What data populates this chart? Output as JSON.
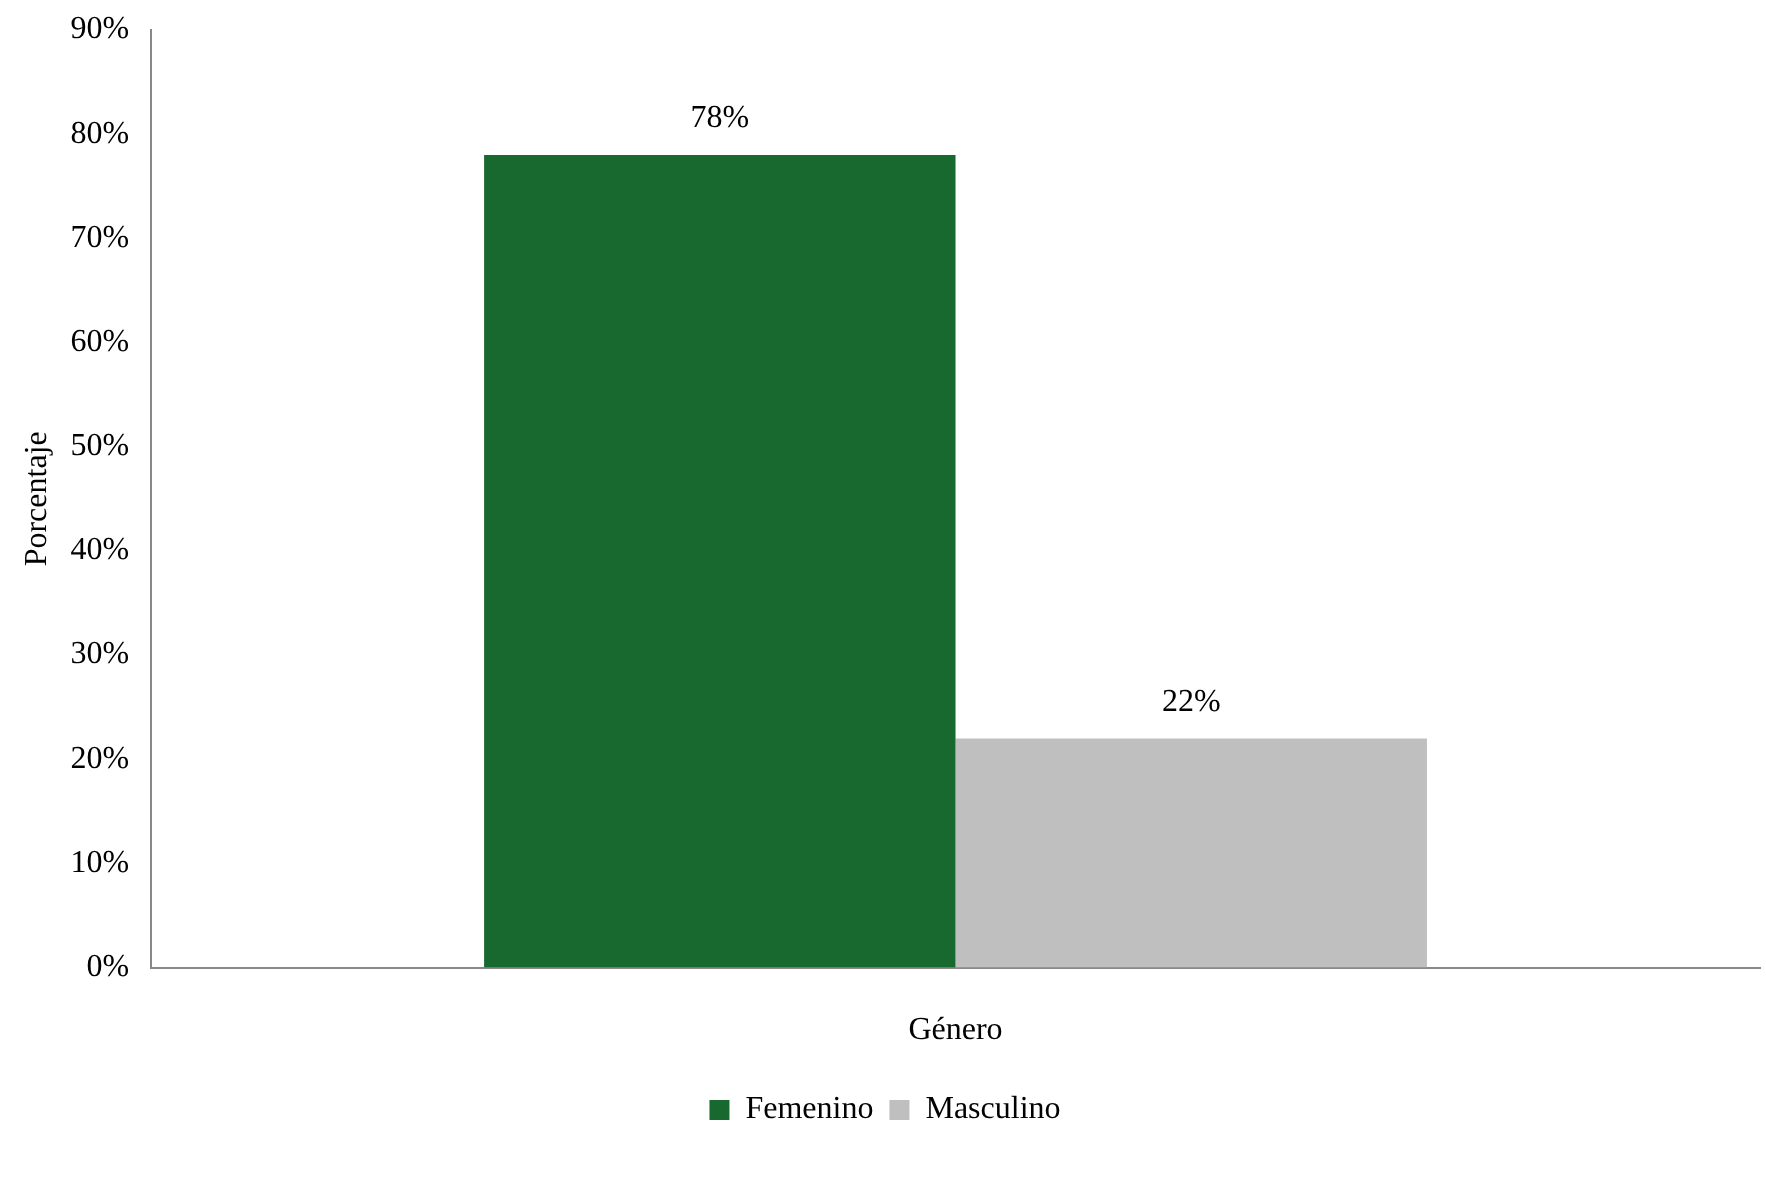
{
  "chart_data": {
    "type": "bar",
    "ylabel": "Porcentaje",
    "categories": [
      "Género"
    ],
    "series": [
      {
        "name": "Femenino",
        "color": "#17692f",
        "values": [
          78
        ],
        "value_labels": [
          "78%"
        ]
      },
      {
        "name": "Masculino",
        "color": "#bfbfbf",
        "values": [
          22
        ],
        "value_labels": [
          "22%"
        ]
      }
    ],
    "ylim": [
      0,
      90
    ],
    "yticks": [
      {
        "value": 0,
        "label": "0%"
      },
      {
        "value": 10,
        "label": "10%"
      },
      {
        "value": 20,
        "label": "20%"
      },
      {
        "value": 30,
        "label": "30%"
      },
      {
        "value": 40,
        "label": "40%"
      },
      {
        "value": 50,
        "label": "50%"
      },
      {
        "value": 60,
        "label": "60%"
      },
      {
        "value": 70,
        "label": "70%"
      },
      {
        "value": 80,
        "label": "80%"
      },
      {
        "value": 90,
        "label": "90%"
      }
    ],
    "grid": false,
    "legend": "bottom"
  }
}
